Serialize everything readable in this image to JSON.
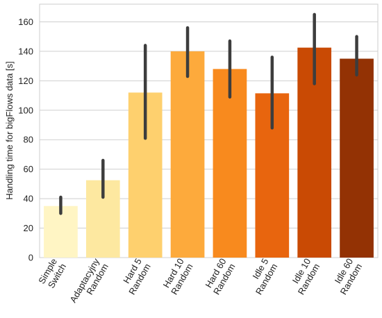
{
  "chart_data": {
    "type": "bar",
    "ylabel": "Handling time for bigFlows data [s]",
    "ylim": [
      0,
      172
    ],
    "yticks": [
      0,
      20,
      40,
      60,
      80,
      100,
      120,
      140,
      160
    ],
    "grid": true,
    "categories": [
      [
        "Simple",
        "Switch"
      ],
      [
        "Adaptacyjny",
        "Random"
      ],
      [
        "Hard 5",
        "Random"
      ],
      [
        "Hard 10",
        "Random"
      ],
      [
        "Hard 60",
        "Random"
      ],
      [
        "Idle 5",
        "Random"
      ],
      [
        "Idle 10",
        "Random"
      ],
      [
        "Idle 60",
        "Random"
      ]
    ],
    "values": [
      35,
      52.5,
      112,
      140,
      128,
      111.5,
      142.5,
      135
    ],
    "error_low": [
      30,
      41,
      81,
      123,
      109,
      88,
      118,
      124
    ],
    "error_high": [
      41,
      66,
      144,
      156,
      147,
      136,
      165,
      150
    ],
    "colors": [
      "#fff5c4",
      "#fde8a0",
      "#fed06e",
      "#fdaa3c",
      "#f88a1e",
      "#e8650e",
      "#c94a04",
      "#933204"
    ]
  }
}
